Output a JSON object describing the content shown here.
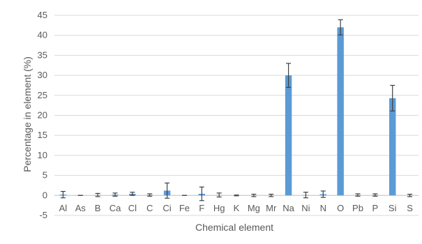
{
  "chart_data": {
    "type": "bar",
    "xlabel": "Chemical element",
    "ylabel": "Percentage in element (%)",
    "ylim": [
      -5,
      45
    ],
    "yticks": [
      -5,
      0,
      5,
      10,
      15,
      20,
      25,
      30,
      35,
      40,
      45
    ],
    "grid": "horizontal",
    "legend": "none",
    "categories": [
      "Al",
      "As",
      "B",
      "Ca",
      "Cl",
      "C",
      "Ci",
      "Fe",
      "F",
      "Hg",
      "K",
      "Mg",
      "Mr",
      "Na",
      "Ni",
      "N",
      "O",
      "Pb",
      "P",
      "Si",
      "S"
    ],
    "values": [
      0.2,
      0.0,
      0.1,
      0.2,
      0.4,
      0.1,
      1.2,
      0.0,
      0.4,
      0.1,
      0.0,
      0.0,
      0.0,
      30.0,
      0.1,
      0.3,
      42.0,
      0.1,
      0.1,
      24.3,
      0.0
    ],
    "errors": [
      0.8,
      0.0,
      0.4,
      0.4,
      0.4,
      0.3,
      1.9,
      0.0,
      1.7,
      0.5,
      0.1,
      0.3,
      0.3,
      3.0,
      0.7,
      0.8,
      1.9,
      0.3,
      0.3,
      3.2,
      0.3
    ],
    "bar_color": "#5b9bd5",
    "error_color": "#404040"
  }
}
